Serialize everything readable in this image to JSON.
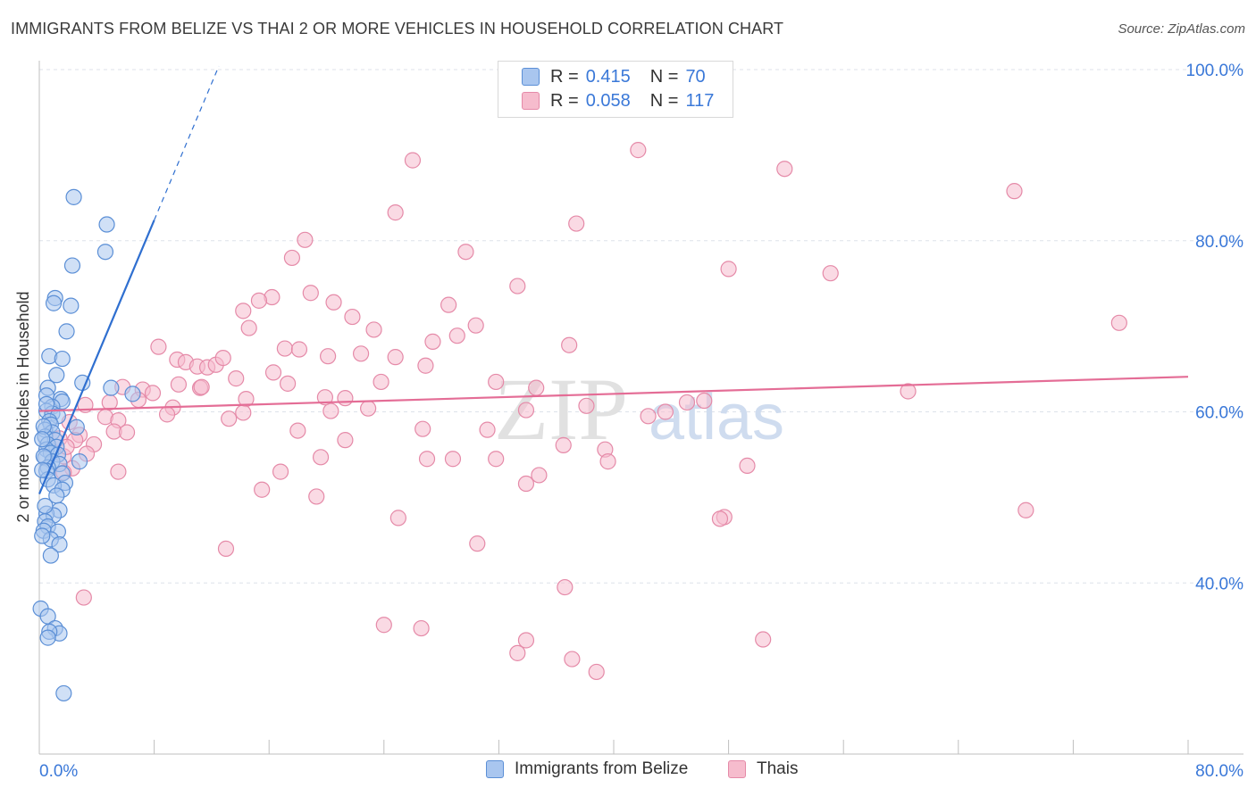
{
  "header": {
    "title": "IMMIGRANTS FROM BELIZE VS THAI 2 OR MORE VEHICLES IN HOUSEHOLD CORRELATION CHART",
    "source": "Source: ZipAtlas.com"
  },
  "watermark": {
    "zip": "ZIP",
    "atlas": "atlas"
  },
  "legend_top": {
    "rows": [
      {
        "r_label": "R =",
        "r_value": "0.415",
        "n_label": "N =",
        "n_value": "70"
      },
      {
        "r_label": "R =",
        "r_value": "0.058",
        "n_label": "N =",
        "n_value": "117"
      }
    ]
  },
  "legend_bottom": {
    "items": [
      "Immigrants from Belize",
      "Thais"
    ]
  },
  "colors": {
    "blue_fill": "#a9c6ef",
    "blue_stroke": "#5b8fd6",
    "blue_line": "#2f6fd0",
    "pink_fill": "#f6bccd",
    "pink_stroke": "#e58aa8",
    "pink_line": "#e46d96",
    "tick_label": "#3a78d8",
    "grid": "#dde2ea"
  },
  "chart_data": {
    "type": "scatter",
    "title": "IMMIGRANTS FROM BELIZE VS THAI 2 OR MORE VEHICLES IN HOUSEHOLD CORRELATION CHART",
    "xlabel": "",
    "ylabel": "2 or more Vehicles in Household",
    "xlim": [
      0,
      80
    ],
    "ylim": [
      20,
      100
    ],
    "x_tick_labels": [
      "0.0%",
      "80.0%"
    ],
    "y_tick_values": [
      40,
      60,
      80,
      100
    ],
    "y_tick_labels": [
      "40.0%",
      "60.0%",
      "80.0%",
      "100.0%"
    ],
    "series": [
      {
        "name": "Immigrants from Belize",
        "r": 0.415,
        "n": 70,
        "trend": {
          "x0": 0.0,
          "y0": 50.4,
          "x1": 8.0,
          "y1": 82.4,
          "dash_to_x": 12.5
        },
        "points": [
          [
            2.4,
            85.1
          ],
          [
            4.7,
            81.9
          ],
          [
            4.6,
            78.7
          ],
          [
            2.3,
            77.1
          ],
          [
            1.1,
            73.3
          ],
          [
            2.2,
            72.4
          ],
          [
            1.0,
            72.7
          ],
          [
            1.9,
            69.4
          ],
          [
            0.7,
            66.5
          ],
          [
            1.6,
            66.2
          ],
          [
            1.2,
            64.3
          ],
          [
            3.0,
            63.4
          ],
          [
            5.0,
            62.8
          ],
          [
            6.5,
            62.1
          ],
          [
            0.6,
            62.8
          ],
          [
            0.5,
            61.9
          ],
          [
            1.5,
            61.5
          ],
          [
            1.6,
            61.2
          ],
          [
            0.9,
            60.6
          ],
          [
            0.5,
            60.1
          ],
          [
            0.9,
            59.8
          ],
          [
            1.3,
            59.5
          ],
          [
            0.7,
            58.9
          ],
          [
            0.8,
            58.5
          ],
          [
            2.6,
            58.2
          ],
          [
            0.4,
            57.9
          ],
          [
            0.9,
            57.6
          ],
          [
            0.4,
            57.1
          ],
          [
            1.1,
            56.7
          ],
          [
            0.6,
            56.2
          ],
          [
            1.2,
            55.9
          ],
          [
            0.5,
            55.6
          ],
          [
            0.8,
            55.2
          ],
          [
            1.3,
            55.0
          ],
          [
            0.4,
            54.6
          ],
          [
            0.9,
            54.2
          ],
          [
            1.4,
            53.9
          ],
          [
            0.6,
            53.5
          ],
          [
            2.8,
            54.2
          ],
          [
            0.5,
            53.1
          ],
          [
            1.6,
            52.8
          ],
          [
            0.6,
            52.1
          ],
          [
            1.8,
            51.7
          ],
          [
            1.0,
            51.4
          ],
          [
            1.6,
            50.9
          ],
          [
            1.2,
            50.2
          ],
          [
            1.4,
            48.5
          ],
          [
            0.5,
            48.1
          ],
          [
            1.0,
            47.9
          ],
          [
            0.4,
            47.2
          ],
          [
            0.6,
            46.6
          ],
          [
            0.3,
            46.1
          ],
          [
            1.3,
            46.0
          ],
          [
            0.8,
            45.1
          ],
          [
            1.4,
            44.5
          ],
          [
            0.8,
            43.2
          ],
          [
            0.1,
            37.0
          ],
          [
            0.6,
            36.1
          ],
          [
            1.1,
            34.7
          ],
          [
            1.4,
            34.1
          ],
          [
            0.7,
            34.3
          ],
          [
            0.6,
            33.6
          ],
          [
            1.7,
            27.1
          ],
          [
            0.3,
            58.3
          ],
          [
            0.2,
            56.8
          ],
          [
            0.3,
            54.8
          ],
          [
            0.2,
            53.2
          ],
          [
            0.4,
            49.0
          ],
          [
            0.2,
            45.5
          ],
          [
            0.5,
            60.9
          ]
        ]
      },
      {
        "name": "Thais",
        "r": 0.058,
        "n": 117,
        "trend": {
          "x0": 0.0,
          "y0": 60.1,
          "x1": 80.0,
          "y1": 64.1
        },
        "points": [
          [
            41.7,
            90.6
          ],
          [
            26.0,
            89.4
          ],
          [
            51.9,
            88.4
          ],
          [
            67.9,
            85.8
          ],
          [
            24.8,
            83.3
          ],
          [
            37.4,
            82.0
          ],
          [
            18.5,
            80.1
          ],
          [
            29.7,
            78.7
          ],
          [
            17.6,
            78.0
          ],
          [
            48.0,
            76.7
          ],
          [
            55.1,
            76.2
          ],
          [
            33.3,
            74.7
          ],
          [
            18.9,
            73.9
          ],
          [
            16.2,
            73.4
          ],
          [
            15.3,
            73.0
          ],
          [
            20.5,
            72.8
          ],
          [
            14.2,
            71.8
          ],
          [
            28.5,
            72.5
          ],
          [
            21.8,
            71.1
          ],
          [
            30.4,
            70.1
          ],
          [
            14.6,
            69.8
          ],
          [
            23.3,
            69.6
          ],
          [
            29.1,
            68.9
          ],
          [
            75.2,
            70.4
          ],
          [
            8.3,
            67.6
          ],
          [
            17.1,
            67.4
          ],
          [
            18.1,
            67.3
          ],
          [
            22.4,
            66.8
          ],
          [
            36.9,
            67.8
          ],
          [
            9.6,
            66.1
          ],
          [
            10.2,
            65.8
          ],
          [
            11.0,
            65.3
          ],
          [
            11.7,
            65.2
          ],
          [
            12.3,
            65.5
          ],
          [
            20.1,
            66.5
          ],
          [
            24.8,
            66.4
          ],
          [
            26.9,
            65.4
          ],
          [
            13.7,
            63.9
          ],
          [
            11.2,
            62.8
          ],
          [
            23.8,
            63.5
          ],
          [
            17.3,
            63.3
          ],
          [
            31.8,
            63.5
          ],
          [
            34.6,
            62.8
          ],
          [
            5.8,
            62.9
          ],
          [
            7.2,
            62.6
          ],
          [
            9.7,
            63.2
          ],
          [
            11.3,
            62.9
          ],
          [
            14.4,
            61.5
          ],
          [
            21.3,
            61.6
          ],
          [
            6.9,
            61.4
          ],
          [
            9.3,
            60.5
          ],
          [
            14.2,
            59.9
          ],
          [
            20.3,
            60.1
          ],
          [
            22.9,
            60.4
          ],
          [
            33.9,
            60.2
          ],
          [
            38.1,
            60.7
          ],
          [
            43.6,
            60.0
          ],
          [
            45.1,
            61.1
          ],
          [
            3.2,
            60.8
          ],
          [
            4.6,
            59.4
          ],
          [
            5.5,
            59.0
          ],
          [
            5.2,
            57.7
          ],
          [
            13.2,
            59.2
          ],
          [
            26.7,
            58.0
          ],
          [
            31.2,
            57.9
          ],
          [
            18.0,
            57.8
          ],
          [
            6.1,
            57.6
          ],
          [
            2.8,
            57.3
          ],
          [
            2.5,
            56.7
          ],
          [
            1.4,
            56.9
          ],
          [
            3.8,
            56.2
          ],
          [
            21.3,
            56.7
          ],
          [
            36.5,
            56.1
          ],
          [
            39.4,
            55.6
          ],
          [
            3.3,
            55.1
          ],
          [
            1.7,
            54.8
          ],
          [
            19.6,
            54.7
          ],
          [
            27.0,
            54.5
          ],
          [
            28.8,
            54.5
          ],
          [
            31.8,
            54.5
          ],
          [
            39.6,
            54.2
          ],
          [
            49.3,
            53.7
          ],
          [
            2.3,
            53.4
          ],
          [
            1.7,
            52.9
          ],
          [
            5.5,
            53.0
          ],
          [
            16.8,
            53.0
          ],
          [
            34.8,
            52.6
          ],
          [
            33.9,
            51.6
          ],
          [
            15.5,
            50.9
          ],
          [
            19.3,
            50.1
          ],
          [
            25.0,
            47.6
          ],
          [
            47.7,
            47.7
          ],
          [
            47.4,
            47.5
          ],
          [
            30.5,
            44.6
          ],
          [
            13.0,
            44.0
          ],
          [
            36.6,
            39.5
          ],
          [
            3.1,
            38.3
          ],
          [
            24.0,
            35.1
          ],
          [
            26.6,
            34.7
          ],
          [
            33.9,
            33.3
          ],
          [
            50.4,
            33.4
          ],
          [
            33.3,
            31.8
          ],
          [
            37.1,
            31.1
          ],
          [
            38.8,
            29.6
          ],
          [
            42.4,
            59.5
          ],
          [
            46.3,
            61.3
          ],
          [
            60.5,
            62.4
          ],
          [
            68.7,
            48.5
          ],
          [
            16.3,
            64.6
          ],
          [
            7.9,
            62.2
          ],
          [
            4.9,
            61.1
          ],
          [
            12.8,
            66.3
          ],
          [
            8.9,
            59.7
          ],
          [
            2.1,
            58.8
          ],
          [
            1.9,
            55.9
          ],
          [
            27.4,
            68.2
          ],
          [
            19.9,
            61.7
          ]
        ]
      }
    ]
  }
}
